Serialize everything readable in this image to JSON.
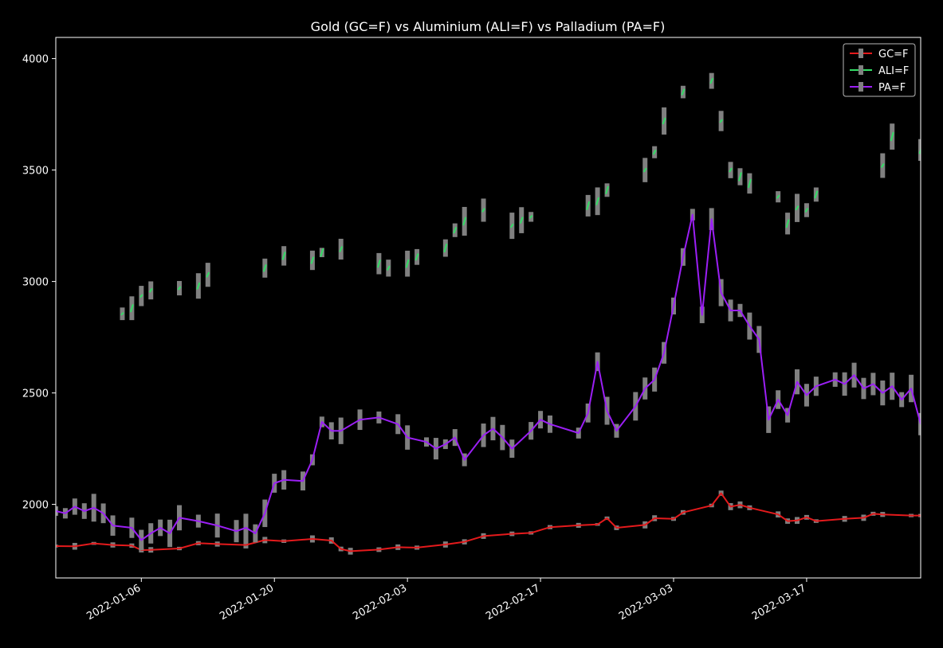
{
  "chart_data": {
    "type": "line",
    "title": "Gold (GC=F) vs Aluminium (ALI=F) vs Palladium (PA=F)",
    "xlabel": "",
    "ylabel": "",
    "x_range": [
      "2021-12-28",
      "2022-03-29"
    ],
    "ylim": [
      1670,
      4095
    ],
    "y_ticks": [
      2000,
      2500,
      3000,
      3500,
      4000
    ],
    "x_ticks": [
      "2022-01-06",
      "2022-01-20",
      "2022-02-03",
      "2022-02-17",
      "2022-03-03",
      "2022-03-17"
    ],
    "grid": false,
    "legend_position": "top-right",
    "range_color": "#808080",
    "series": [
      {
        "name": "GC=F",
        "color": "#e41a1c",
        "style": "line",
        "points": [
          [
            "2021-12-28",
            1813
          ],
          [
            "2021-12-30",
            1812
          ],
          [
            "2022-01-01",
            1825
          ],
          [
            "2022-01-03",
            1818
          ],
          [
            "2022-01-05",
            1815
          ],
          [
            "2022-01-06",
            1795
          ],
          [
            "2022-01-07",
            1796
          ],
          [
            "2022-01-10",
            1802
          ],
          [
            "2022-01-12",
            1826
          ],
          [
            "2022-01-14",
            1822
          ],
          [
            "2022-01-17",
            1818
          ],
          [
            "2022-01-19",
            1840
          ],
          [
            "2022-01-21",
            1835
          ],
          [
            "2022-01-24",
            1845
          ],
          [
            "2022-01-26",
            1838
          ],
          [
            "2022-01-27",
            1800
          ],
          [
            "2022-01-28",
            1790
          ],
          [
            "2022-01-31",
            1797
          ],
          [
            "2022-02-02",
            1808
          ],
          [
            "2022-02-04",
            1806
          ],
          [
            "2022-02-07",
            1820
          ],
          [
            "2022-02-09",
            1832
          ],
          [
            "2022-02-11",
            1858
          ],
          [
            "2022-02-14",
            1868
          ],
          [
            "2022-02-16",
            1872
          ],
          [
            "2022-02-18",
            1898
          ],
          [
            "2022-02-21",
            1906
          ],
          [
            "2022-02-23",
            1910
          ],
          [
            "2022-02-24",
            1938
          ],
          [
            "2022-02-25",
            1895
          ],
          [
            "2022-02-28",
            1908
          ],
          [
            "2022-03-01",
            1938
          ],
          [
            "2022-03-03",
            1935
          ],
          [
            "2022-03-04",
            1964
          ],
          [
            "2022-03-07",
            1995
          ],
          [
            "2022-03-08",
            2050
          ],
          [
            "2022-03-09",
            1990
          ],
          [
            "2022-03-10",
            1998
          ],
          [
            "2022-03-11",
            1985
          ],
          [
            "2022-03-14",
            1955
          ],
          [
            "2022-03-15",
            1925
          ],
          [
            "2022-03-16",
            1928
          ],
          [
            "2022-03-17",
            1942
          ],
          [
            "2022-03-18",
            1925
          ],
          [
            "2022-03-21",
            1935
          ],
          [
            "2022-03-23",
            1940
          ],
          [
            "2022-03-24",
            1958
          ],
          [
            "2022-03-25",
            1955
          ],
          [
            "2022-03-28",
            1950
          ],
          [
            "2022-03-29",
            1950
          ]
        ]
      },
      {
        "name": "ALI=F",
        "color": "#33dd66",
        "style": "segments",
        "points": [
          [
            "2022-01-04",
            2855
          ],
          [
            "2022-01-05",
            2880
          ],
          [
            "2022-01-06",
            2935
          ],
          [
            "2022-01-07",
            2960
          ],
          [
            "2022-01-10",
            2970
          ],
          [
            "2022-01-12",
            2980
          ],
          [
            "2022-01-13",
            3030
          ],
          [
            "2022-01-19",
            3060
          ],
          [
            "2022-01-21",
            3115
          ],
          [
            "2022-01-24",
            3095
          ],
          [
            "2022-01-25",
            3130
          ],
          [
            "2022-01-27",
            3145
          ],
          [
            "2022-01-31",
            3080
          ],
          [
            "2022-02-01",
            3060
          ],
          [
            "2022-02-03",
            3080
          ],
          [
            "2022-02-04",
            3110
          ],
          [
            "2022-02-07",
            3150
          ],
          [
            "2022-02-08",
            3230
          ],
          [
            "2022-02-09",
            3270
          ],
          [
            "2022-02-11",
            3320
          ],
          [
            "2022-02-14",
            3250
          ],
          [
            "2022-02-15",
            3275
          ],
          [
            "2022-02-16",
            3290
          ],
          [
            "2022-02-22",
            3340
          ],
          [
            "2022-02-23",
            3360
          ],
          [
            "2022-02-24",
            3410
          ],
          [
            "2022-02-28",
            3500
          ],
          [
            "2022-03-01",
            3580
          ],
          [
            "2022-03-02",
            3720
          ],
          [
            "2022-03-04",
            3850
          ],
          [
            "2022-03-07",
            3900
          ],
          [
            "2022-03-08",
            3720
          ],
          [
            "2022-03-09",
            3500
          ],
          [
            "2022-03-10",
            3470
          ],
          [
            "2022-03-11",
            3440
          ],
          [
            "2022-03-14",
            3380
          ],
          [
            "2022-03-15",
            3260
          ],
          [
            "2022-03-16",
            3330
          ],
          [
            "2022-03-17",
            3320
          ],
          [
            "2022-03-18",
            3390
          ],
          [
            "2022-03-25",
            3520
          ],
          [
            "2022-03-26",
            3650
          ],
          [
            "2022-03-29",
            3590
          ]
        ]
      },
      {
        "name": "PA=F",
        "color": "#9b1ff5",
        "style": "line",
        "points": [
          [
            "2021-12-28",
            1970
          ],
          [
            "2021-12-29",
            1960
          ],
          [
            "2021-12-30",
            1990
          ],
          [
            "2021-12-31",
            1970
          ],
          [
            "2022-01-01",
            1985
          ],
          [
            "2022-01-02",
            1960
          ],
          [
            "2022-01-03",
            1905
          ],
          [
            "2022-01-05",
            1895
          ],
          [
            "2022-01-06",
            1840
          ],
          [
            "2022-01-07",
            1870
          ],
          [
            "2022-01-08",
            1895
          ],
          [
            "2022-01-09",
            1870
          ],
          [
            "2022-01-10",
            1940
          ],
          [
            "2022-01-12",
            1925
          ],
          [
            "2022-01-14",
            1905
          ],
          [
            "2022-01-16",
            1880
          ],
          [
            "2022-01-17",
            1895
          ],
          [
            "2022-01-18",
            1870
          ],
          [
            "2022-01-19",
            1960
          ],
          [
            "2022-01-20",
            2095
          ],
          [
            "2022-01-21",
            2110
          ],
          [
            "2022-01-23",
            2105
          ],
          [
            "2022-01-24",
            2200
          ],
          [
            "2022-01-25",
            2370
          ],
          [
            "2022-01-26",
            2330
          ],
          [
            "2022-01-27",
            2330
          ],
          [
            "2022-01-29",
            2380
          ],
          [
            "2022-01-31",
            2390
          ],
          [
            "2022-02-02",
            2360
          ],
          [
            "2022-02-03",
            2300
          ],
          [
            "2022-02-05",
            2280
          ],
          [
            "2022-02-06",
            2250
          ],
          [
            "2022-02-07",
            2270
          ],
          [
            "2022-02-08",
            2300
          ],
          [
            "2022-02-09",
            2200
          ],
          [
            "2022-02-11",
            2310
          ],
          [
            "2022-02-12",
            2340
          ],
          [
            "2022-02-13",
            2300
          ],
          [
            "2022-02-14",
            2250
          ],
          [
            "2022-02-16",
            2330
          ],
          [
            "2022-02-17",
            2380
          ],
          [
            "2022-02-18",
            2360
          ],
          [
            "2022-02-21",
            2320
          ],
          [
            "2022-02-22",
            2410
          ],
          [
            "2022-02-23",
            2640
          ],
          [
            "2022-02-24",
            2420
          ],
          [
            "2022-02-25",
            2330
          ],
          [
            "2022-02-27",
            2440
          ],
          [
            "2022-02-28",
            2520
          ],
          [
            "2022-03-01",
            2560
          ],
          [
            "2022-03-02",
            2680
          ],
          [
            "2022-03-03",
            2890
          ],
          [
            "2022-03-04",
            3110
          ],
          [
            "2022-03-05",
            3300
          ],
          [
            "2022-03-06",
            2850
          ],
          [
            "2022-03-07",
            3280
          ],
          [
            "2022-03-08",
            2950
          ],
          [
            "2022-03-09",
            2870
          ],
          [
            "2022-03-10",
            2870
          ],
          [
            "2022-03-11",
            2800
          ],
          [
            "2022-03-12",
            2740
          ],
          [
            "2022-03-13",
            2380
          ],
          [
            "2022-03-14",
            2470
          ],
          [
            "2022-03-15",
            2400
          ],
          [
            "2022-03-16",
            2550
          ],
          [
            "2022-03-17",
            2490
          ],
          [
            "2022-03-18",
            2530
          ],
          [
            "2022-03-20",
            2560
          ],
          [
            "2022-03-21",
            2540
          ],
          [
            "2022-03-22",
            2580
          ],
          [
            "2022-03-23",
            2520
          ],
          [
            "2022-03-24",
            2540
          ],
          [
            "2022-03-25",
            2500
          ],
          [
            "2022-03-26",
            2530
          ],
          [
            "2022-03-27",
            2470
          ],
          [
            "2022-03-28",
            2520
          ],
          [
            "2022-03-29",
            2360
          ]
        ]
      }
    ]
  }
}
